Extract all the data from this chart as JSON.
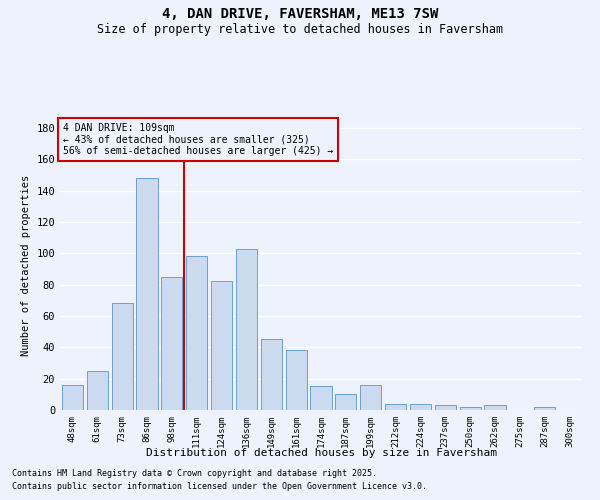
{
  "title": "4, DAN DRIVE, FAVERSHAM, ME13 7SW",
  "subtitle": "Size of property relative to detached houses in Faversham",
  "xlabel": "Distribution of detached houses by size in Faversham",
  "ylabel": "Number of detached properties",
  "categories": [
    "48sqm",
    "61sqm",
    "73sqm",
    "86sqm",
    "98sqm",
    "111sqm",
    "124sqm",
    "136sqm",
    "149sqm",
    "161sqm",
    "174sqm",
    "187sqm",
    "199sqm",
    "212sqm",
    "224sqm",
    "237sqm",
    "250sqm",
    "262sqm",
    "275sqm",
    "287sqm",
    "300sqm"
  ],
  "values": [
    16,
    25,
    68,
    148,
    85,
    98,
    82,
    103,
    45,
    38,
    15,
    10,
    16,
    4,
    4,
    3,
    2,
    3,
    0,
    2,
    0
  ],
  "bar_color": "#ccdaf0",
  "bar_edge_color": "#6b9fd4",
  "background_color": "#eef2fc",
  "grid_color": "#ffffff",
  "vline_color": "#cc0000",
  "annotation_title": "4 DAN DRIVE: 109sqm",
  "annotation_line1": "← 43% of detached houses are smaller (325)",
  "annotation_line2": "56% of semi-detached houses are larger (425) →",
  "annotation_box_color": "#cc0000",
  "ylim": [
    0,
    185
  ],
  "yticks": [
    0,
    20,
    40,
    60,
    80,
    100,
    120,
    140,
    160,
    180
  ],
  "footnote1": "Contains HM Land Registry data © Crown copyright and database right 2025.",
  "footnote2": "Contains public sector information licensed under the Open Government Licence v3.0."
}
